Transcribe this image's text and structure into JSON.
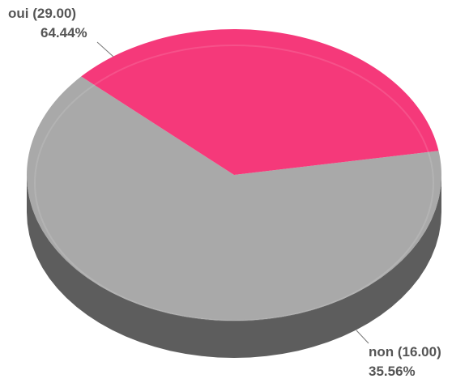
{
  "chart_data": {
    "type": "pie",
    "categories": [
      "oui (29.00)",
      "non (16.00)"
    ],
    "values": [
      64.44,
      35.56
    ],
    "value_labels": [
      "64.44%",
      "35.56%"
    ],
    "colors": [
      "#a9a9a9",
      "#f5397a"
    ]
  }
}
